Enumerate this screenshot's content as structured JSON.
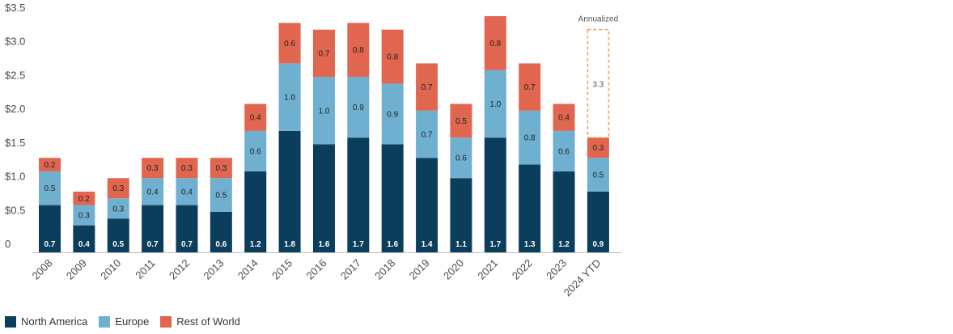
{
  "chart_data": {
    "type": "bar",
    "stacked": true,
    "categories": [
      "2008",
      "2009",
      "2010",
      "2011",
      "2012",
      "2013",
      "2014",
      "2015",
      "2016",
      "2017",
      "2018",
      "2019",
      "2020",
      "2021",
      "2022",
      "2023",
      "2024 YTD"
    ],
    "series": [
      {
        "name": "North America",
        "color": "#0b3d5c",
        "values": [
          0.7,
          0.4,
          0.5,
          0.7,
          0.7,
          0.6,
          1.2,
          1.8,
          1.6,
          1.7,
          1.6,
          1.4,
          1.1,
          1.7,
          1.3,
          1.2,
          0.9
        ]
      },
      {
        "name": "Europe",
        "color": "#6fb0d0",
        "values": [
          0.5,
          0.3,
          0.3,
          0.4,
          0.4,
          0.5,
          0.6,
          1.0,
          1.0,
          0.9,
          0.9,
          0.7,
          0.6,
          1.0,
          0.8,
          0.6,
          0.5
        ]
      },
      {
        "name": "Rest of World",
        "color": "#e06650",
        "values": [
          0.2,
          0.2,
          0.3,
          0.3,
          0.3,
          0.3,
          0.4,
          0.6,
          0.7,
          0.8,
          0.8,
          0.7,
          0.5,
          0.8,
          0.7,
          0.4,
          0.3
        ]
      }
    ],
    "y_ticks": [
      "0",
      "$0.5",
      "$1.0",
      "$1.5",
      "$2.0",
      "$2.5",
      "$3.0",
      "$3.5"
    ],
    "ylim": [
      0,
      3.5
    ],
    "annualized": {
      "category": "2024 YTD",
      "label": "Annualized",
      "value": 3.3,
      "value_label": "3.3",
      "color": "#f0a060"
    },
    "legend_position": "bottom-left",
    "grid": false
  }
}
